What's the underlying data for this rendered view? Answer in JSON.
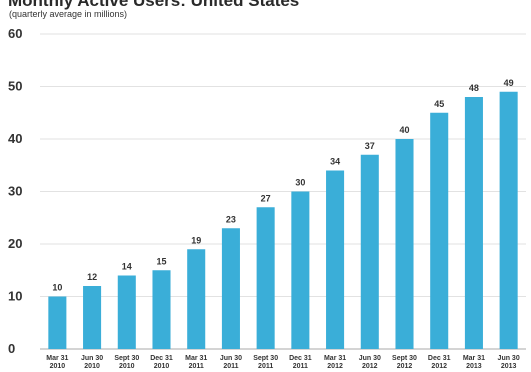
{
  "chart_data": {
    "type": "bar",
    "title": "Monthly Active Users: United States",
    "subtitle": "(quarterly average in millions)",
    "categories": [
      [
        "Mar 31",
        "2010"
      ],
      [
        "Jun 30",
        "2010"
      ],
      [
        "Sept 30",
        "2010"
      ],
      [
        "Dec 31",
        "2010"
      ],
      [
        "Mar 31",
        "2011"
      ],
      [
        "Jun 30",
        "2011"
      ],
      [
        "Sept 30",
        "2011"
      ],
      [
        "Dec 31",
        "2011"
      ],
      [
        "Mar 31",
        "2012"
      ],
      [
        "Jun 30",
        "2012"
      ],
      [
        "Sept 30",
        "2012"
      ],
      [
        "Dec 31",
        "2012"
      ],
      [
        "Mar 31",
        "2013"
      ],
      [
        "Jun 30",
        "2013"
      ]
    ],
    "values": [
      10,
      12,
      14,
      15,
      19,
      23,
      27,
      30,
      34,
      37,
      40,
      45,
      48,
      49
    ],
    "data_labels": [
      "10",
      "12",
      "14",
      "15",
      "19",
      "23",
      "27",
      "30",
      "34",
      "37",
      "40",
      "45",
      "48",
      "49"
    ],
    "yticks": [
      0,
      10,
      20,
      30,
      40,
      50,
      60
    ],
    "ylim": [
      0,
      60
    ],
    "xlabel": "",
    "ylabel": "",
    "grid": true,
    "legend": "none",
    "colors": {
      "bar": "#3aaed8",
      "grid": "#d9d9d9",
      "axis": "#bbbbbb"
    }
  }
}
